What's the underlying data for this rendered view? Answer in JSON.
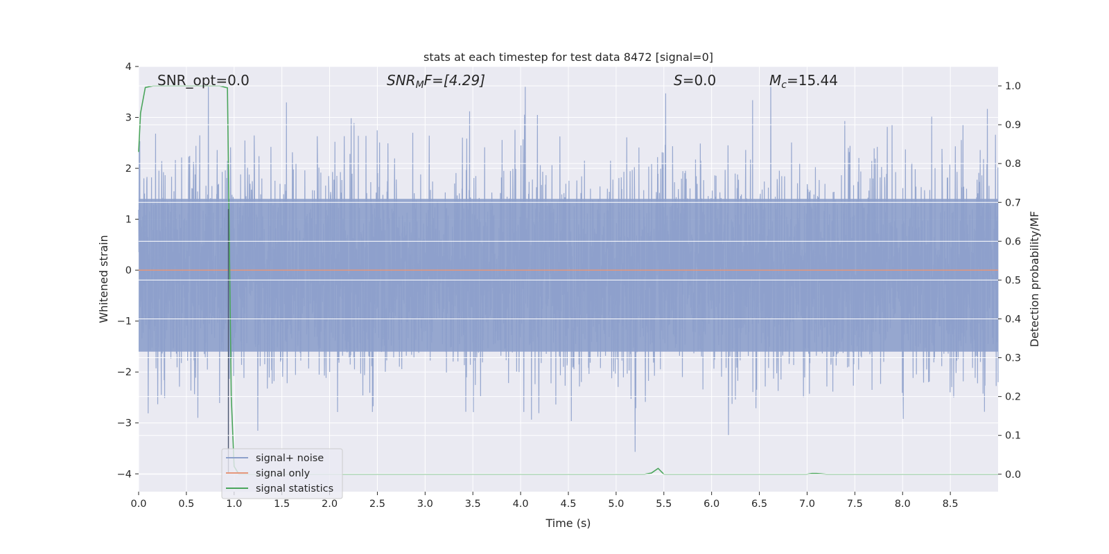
{
  "chart_data": {
    "type": "line",
    "title": "stats at each timestep for test data 8472 [signal=0]",
    "xlabel": "Time (s)",
    "ylabel_left": "Whitened strain",
    "ylabel_right": "Detection probability/MF",
    "xlim": [
      0.0,
      9.0
    ],
    "ylim_left": [
      -4.35,
      4.0
    ],
    "ylim_right": [
      -0.045,
      1.05
    ],
    "x_ticks": [
      "0.0",
      "0.5",
      "1.0",
      "1.5",
      "2.0",
      "2.5",
      "3.0",
      "3.5",
      "4.0",
      "4.5",
      "5.0",
      "5.5",
      "6.0",
      "6.5",
      "7.0",
      "7.5",
      "8.0",
      "8.5"
    ],
    "y_ticks_left": [
      "4",
      "3",
      "2",
      "1",
      "0",
      "−1",
      "−2",
      "−3",
      "−4"
    ],
    "y_ticks_right": [
      "1.0",
      "0.9",
      "0.8",
      "0.7",
      "0.6",
      "0.5",
      "0.4",
      "0.3",
      "0.2",
      "0.1",
      "0.0"
    ],
    "grid": true,
    "legend_placement": "lower-left",
    "annotations": {
      "snr_opt": "SNR_opt=0.0",
      "snr_mf_pre": "SNR",
      "snr_mf_sub": "M",
      "snr_mf_post": "F=[4.29]",
      "s_pre": "S",
      "s_post": "=0.0",
      "mc_pre": "M",
      "mc_sub": "c",
      "mc_post": "=15.44"
    },
    "series": [
      {
        "name": "signal+ noise",
        "color": "#8da0cb",
        "axis": "left",
        "style": "noise",
        "envelope": [
          1.4,
          -1.6
        ],
        "x_range": [
          0.0,
          9.0
        ]
      },
      {
        "name": "signal only",
        "color": "#e5967a",
        "axis": "left",
        "x": [
          0.0,
          9.0
        ],
        "y": [
          0.0,
          0.0
        ]
      },
      {
        "name": "signal statistics",
        "color": "#4aa55b",
        "axis": "right",
        "x": [
          0.0,
          0.02,
          0.07,
          0.15,
          0.3,
          0.5,
          0.7,
          0.85,
          0.93,
          0.95,
          0.97,
          1.0,
          1.05,
          1.2,
          2.0,
          3.0,
          4.0,
          5.0,
          5.3,
          5.37,
          5.44,
          5.5,
          5.6,
          6.0,
          7.0,
          7.05,
          7.1,
          7.2,
          8.0,
          9.0
        ],
        "y": [
          0.83,
          0.93,
          0.996,
          1.0,
          1.0,
          1.0,
          1.0,
          1.0,
          0.995,
          0.6,
          0.2,
          0.02,
          0.0,
          0.0,
          0.0,
          0.0,
          0.0,
          0.0,
          0.0,
          0.003,
          0.015,
          0.0,
          0.0,
          0.0,
          0.0,
          0.002,
          0.002,
          0.0,
          0.0,
          0.0
        ]
      }
    ]
  }
}
